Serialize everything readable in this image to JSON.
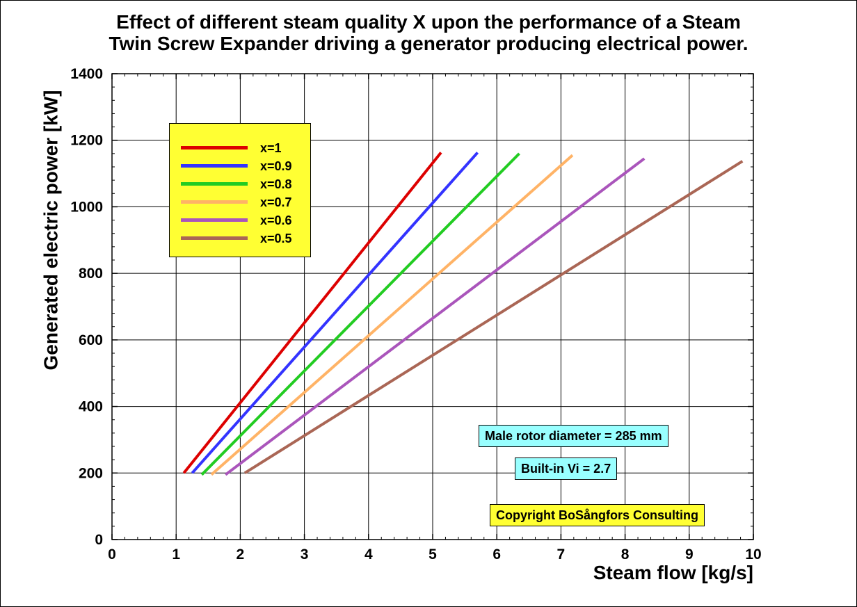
{
  "chart_data": {
    "type": "line",
    "title": "Effect of different steam quality X upon the performance of a Steam Twin Screw Expander driving a generator producing electrical power.",
    "title_lines": [
      "Effect of different steam quality X upon the performance of a Steam",
      "Twin Screw Expander driving a generator producing electrical power."
    ],
    "xlabel": "Steam flow [kg/s]",
    "ylabel": "Generated electric power [kW]",
    "xlim": [
      0,
      10
    ],
    "ylim": [
      0,
      1400
    ],
    "xticks": [
      0,
      1,
      2,
      3,
      4,
      5,
      6,
      7,
      8,
      9,
      10
    ],
    "yticks": [
      0,
      200,
      400,
      600,
      800,
      1000,
      1200,
      1400
    ],
    "grid": true,
    "legend_position": "top-left",
    "series": [
      {
        "name": "x=1",
        "color": "#dd0000",
        "x": [
          1.12,
          5.13
        ],
        "y": [
          200,
          1163
        ]
      },
      {
        "name": "x=0.9",
        "color": "#3333ff",
        "x": [
          1.25,
          5.7
        ],
        "y": [
          200,
          1163
        ]
      },
      {
        "name": "x=0.8",
        "color": "#22cc22",
        "x": [
          1.4,
          6.35
        ],
        "y": [
          195,
          1160
        ]
      },
      {
        "name": "x=0.7",
        "color": "#ffb366",
        "x": [
          1.55,
          7.18
        ],
        "y": [
          195,
          1155
        ]
      },
      {
        "name": "x=0.6",
        "color": "#aa55bb",
        "x": [
          1.77,
          8.3
        ],
        "y": [
          195,
          1145
        ]
      },
      {
        "name": "x=0.5",
        "color": "#aa6655",
        "x": [
          2.07,
          9.83
        ],
        "y": [
          200,
          1137
        ]
      }
    ]
  },
  "annotations": {
    "rotor_diameter": "Male rotor diameter = 285 mm",
    "built_in_vi": "Built-in Vi = 2.7",
    "copyright": "Copyright BoSångfors Consulting"
  },
  "colors": {
    "legend_bg": "#ffff33",
    "note_bg": "#99ffff",
    "copyright_bg": "#ffff33"
  }
}
